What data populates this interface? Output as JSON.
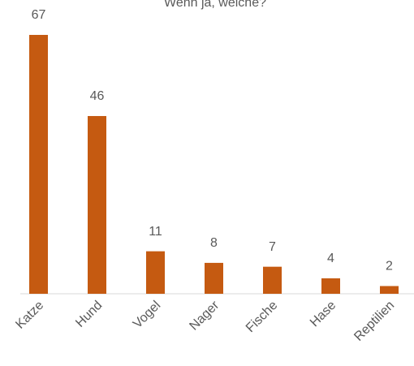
{
  "chart_data": {
    "type": "bar",
    "title": "Wenn ja, welche?",
    "categories": [
      "Katze",
      "Hund",
      "Vogel",
      "Nager",
      "Fische",
      "Hase",
      "Reptilien"
    ],
    "values": [
      67,
      46,
      11,
      8,
      7,
      4,
      2
    ],
    "color": "#c55a11"
  }
}
